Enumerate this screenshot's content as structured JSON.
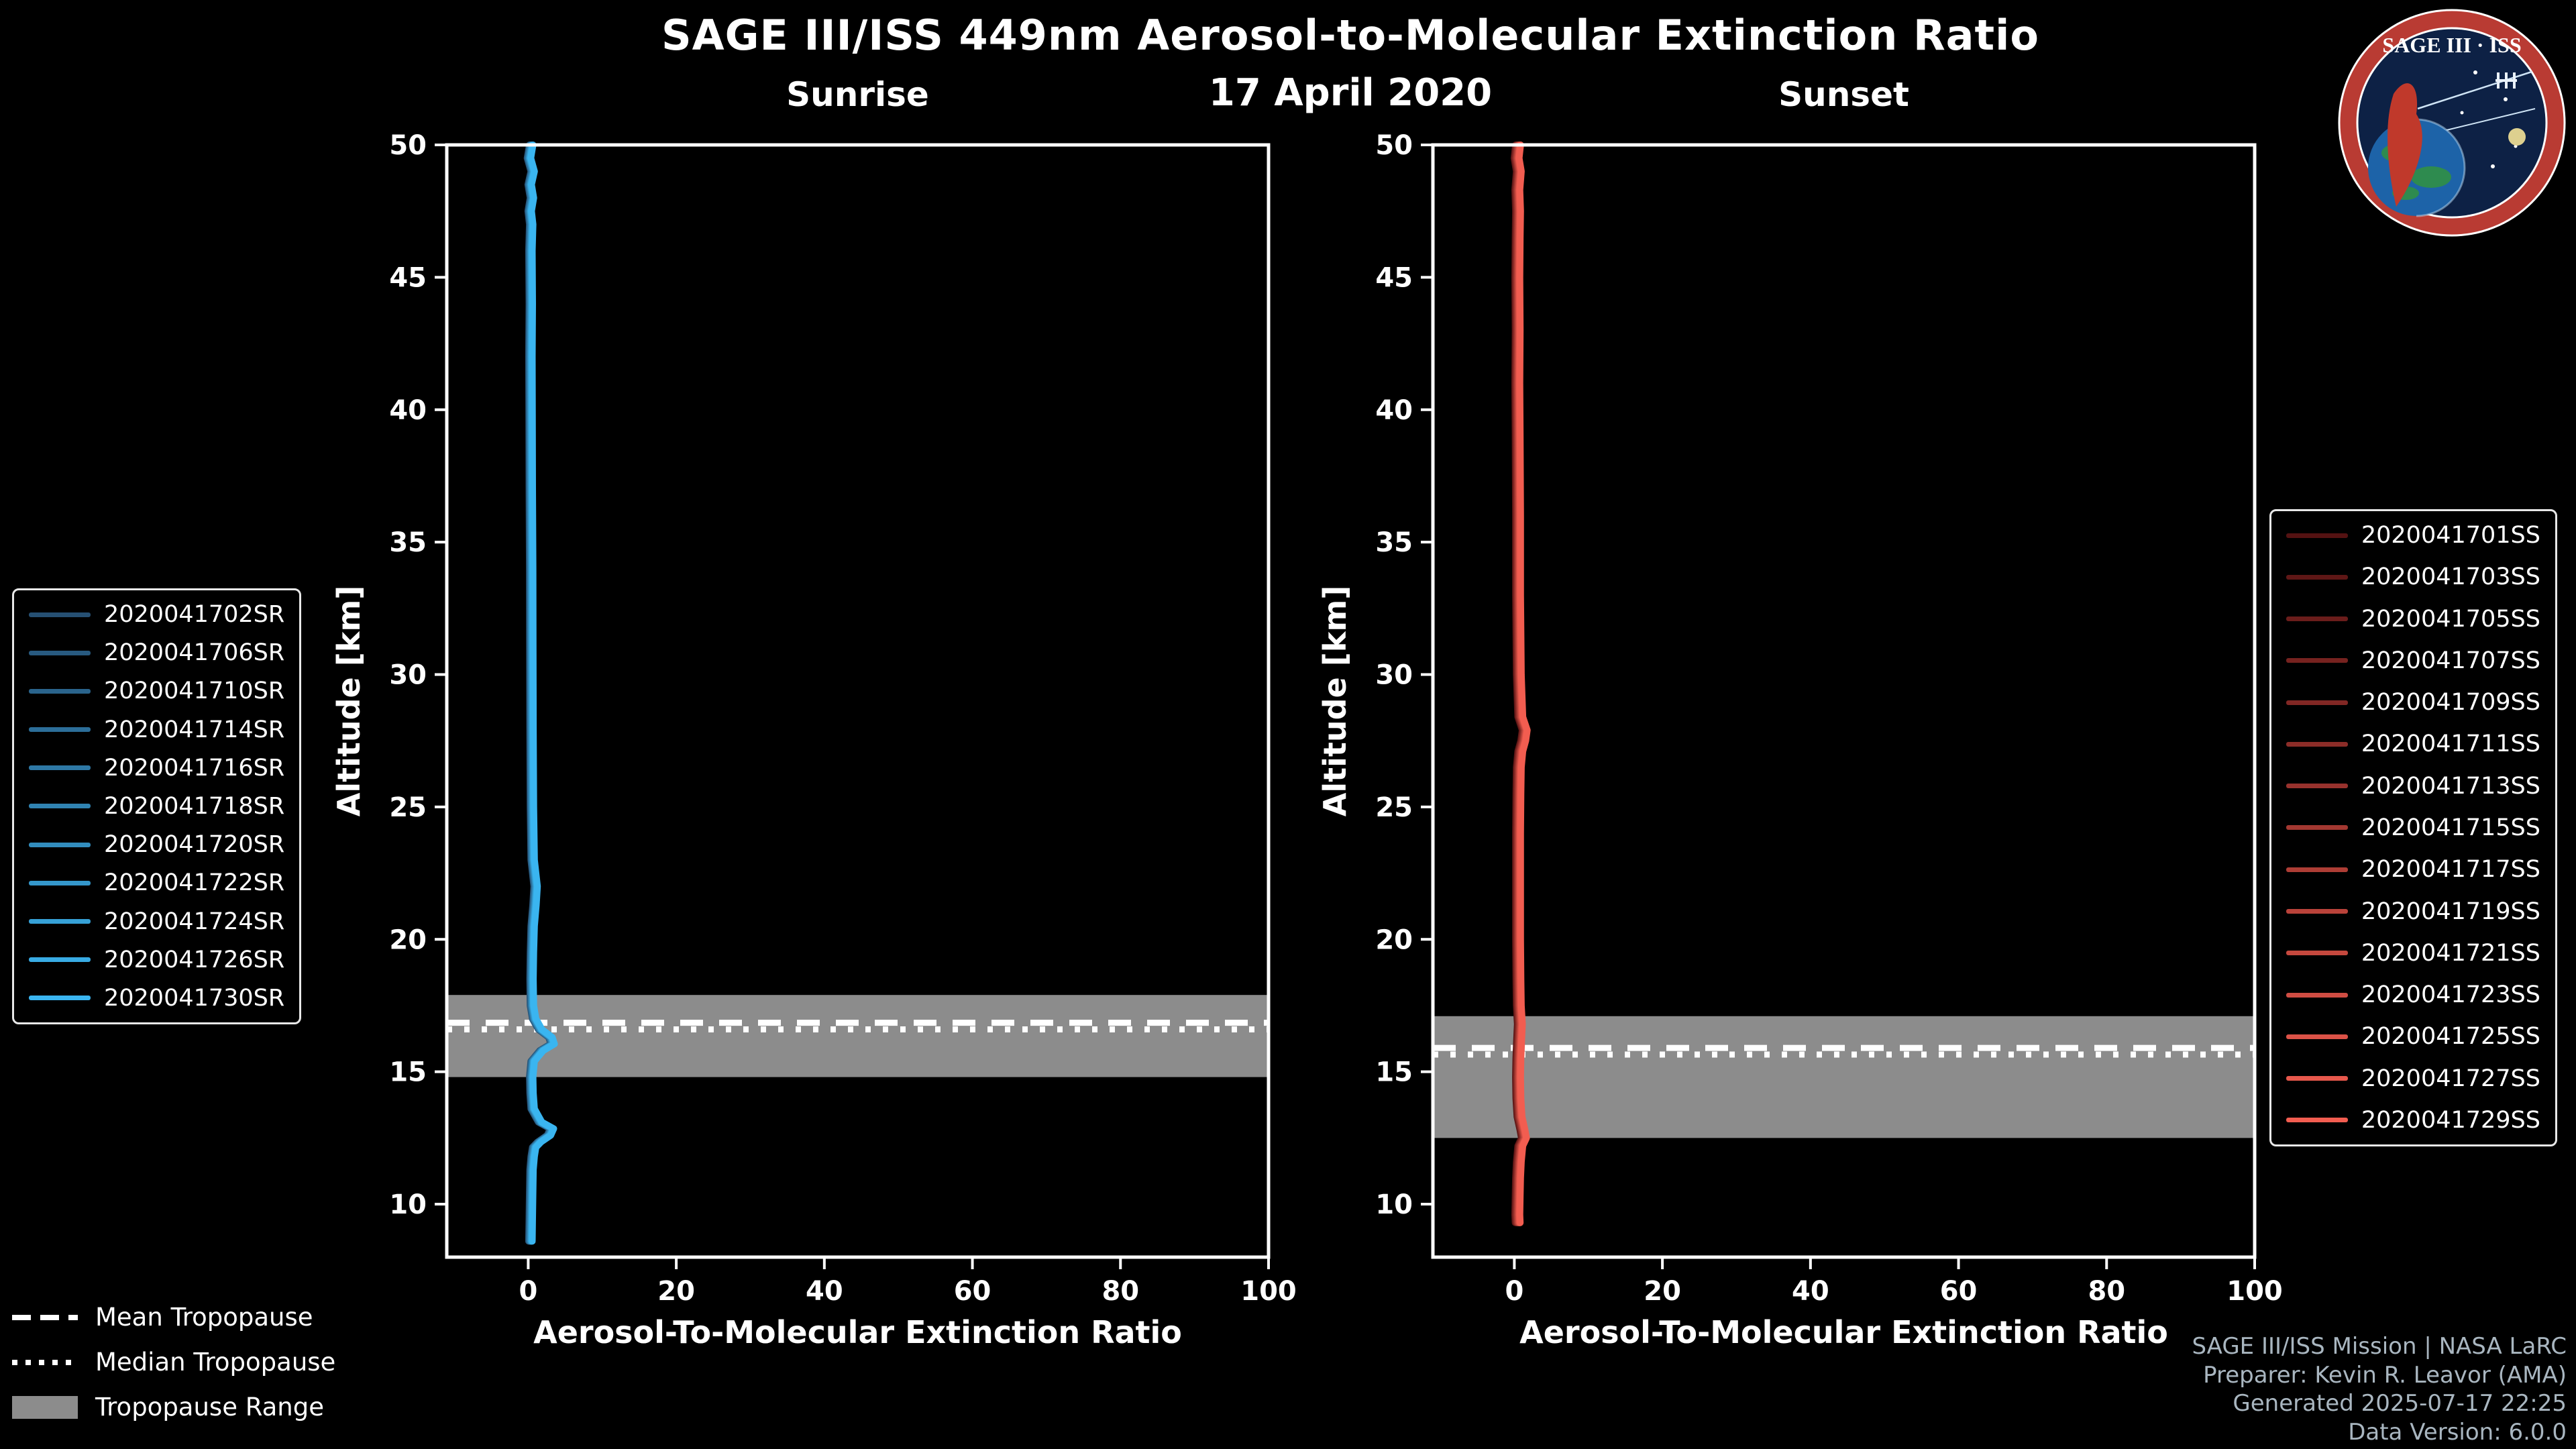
{
  "title": "SAGE III/ISS 449nm Aerosol-to-Molecular Extinction Ratio",
  "date": "17 April 2020",
  "logo": {
    "title": "SAGE III · ISS"
  },
  "legend": {
    "mean": "Mean Tropopause",
    "median": "Median Tropopause",
    "range": "Tropopause Range",
    "range_color": "#8c8c8c"
  },
  "footer": {
    "lines": [
      "SAGE III/ISS Mission | NASA LaRC",
      "Preparer: Kevin R. Leavor (AMA)",
      "Generated 2025-07-17 22:25",
      "Data Version: 6.0.0"
    ]
  },
  "chart_data": [
    {
      "type": "line",
      "panel": "sunrise",
      "title": "Sunrise",
      "xlabel": "Aerosol-To-Molecular Extinction Ratio",
      "ylabel": "Altitude [km]",
      "xlim": [
        -11,
        100
      ],
      "ylim": [
        8,
        50
      ],
      "xticks": [
        0,
        20,
        40,
        60,
        80,
        100
      ],
      "yticks": [
        10,
        15,
        20,
        25,
        30,
        35,
        40,
        45,
        50
      ],
      "grid": false,
      "legend_position": "left",
      "tropopause": {
        "mean_km": 16.85,
        "median_km": 16.6,
        "range_km": [
          14.8,
          17.9
        ]
      },
      "series": [
        {
          "name": "2020041702SR",
          "color": "#265073"
        },
        {
          "name": "2020041706SR",
          "color": "#285a80"
        },
        {
          "name": "2020041710SR",
          "color": "#2a648c"
        },
        {
          "name": "2020041714SR",
          "color": "#2c6e99"
        },
        {
          "name": "2020041716SR",
          "color": "#2e78a5"
        },
        {
          "name": "2020041718SR",
          "color": "#3083b2"
        },
        {
          "name": "2020041720SR",
          "color": "#328dbe"
        },
        {
          "name": "2020041722SR",
          "color": "#3497cb"
        },
        {
          "name": "2020041724SR",
          "color": "#36a1d7"
        },
        {
          "name": "2020041726SR",
          "color": "#38abe4"
        },
        {
          "name": "2020041730SR",
          "color": "#3ab5f0"
        }
      ],
      "profile": {
        "note": "overlapping extinction-ratio profiles, values near 0 with enhancements near 16 km and 13 km",
        "ratio": [
          0.4,
          0.1,
          0.6,
          0.2,
          0.5,
          0.2,
          0.4,
          0.3,
          0.35,
          0.3,
          0.32,
          0.35,
          0.4,
          0.42,
          0.45,
          0.5,
          0.6,
          1.0,
          0.85,
          0.6,
          0.5,
          0.45,
          0.5,
          0.8,
          1.6,
          3.0,
          3.3,
          1.8,
          0.6,
          0.4,
          0.45,
          0.6,
          1.6,
          3.2,
          2.8,
          1.5,
          0.8,
          0.6,
          0.45,
          0.4,
          0.35,
          0.3
        ],
        "altitude_km": [
          50,
          49.5,
          49,
          48.5,
          48,
          47.5,
          47,
          46,
          44,
          42,
          40,
          37,
          34,
          31,
          28,
          25,
          23,
          22,
          21.3,
          20.5,
          19.5,
          18.5,
          17.5,
          17,
          16.6,
          16.3,
          16.05,
          15.8,
          15.4,
          14.8,
          14.2,
          13.6,
          13.1,
          12.85,
          12.6,
          12.35,
          12.15,
          11.8,
          11.3,
          10.5,
          9.5,
          8.6
        ]
      }
    },
    {
      "type": "line",
      "panel": "sunset",
      "title": "Sunset",
      "xlabel": "Aerosol-To-Molecular Extinction Ratio",
      "ylabel": "Altitude [km]",
      "xlim": [
        -11,
        100
      ],
      "ylim": [
        8,
        50
      ],
      "xticks": [
        0,
        20,
        40,
        60,
        80,
        100
      ],
      "yticks": [
        10,
        15,
        20,
        25,
        30,
        35,
        40,
        45,
        50
      ],
      "grid": false,
      "legend_position": "right",
      "tropopause": {
        "mean_km": 15.9,
        "median_km": 15.65,
        "range_km": [
          12.5,
          17.1
        ]
      },
      "series": [
        {
          "name": "2020041701SS",
          "color": "#541212"
        },
        {
          "name": "2020041703SS",
          "color": "#5f1716"
        },
        {
          "name": "2020041705SS",
          "color": "#6b1d1b"
        },
        {
          "name": "2020041707SS",
          "color": "#76221f"
        },
        {
          "name": "2020041709SS",
          "color": "#812724"
        },
        {
          "name": "2020041711SS",
          "color": "#8c2d28"
        },
        {
          "name": "2020041713SS",
          "color": "#98322d"
        },
        {
          "name": "2020041715SS",
          "color": "#a33831"
        },
        {
          "name": "2020041717SS",
          "color": "#ae3d35"
        },
        {
          "name": "2020041719SS",
          "color": "#b9423a"
        },
        {
          "name": "2020041721SS",
          "color": "#c5483e"
        },
        {
          "name": "2020041723SS",
          "color": "#d04d43"
        },
        {
          "name": "2020041725SS",
          "color": "#db5247"
        },
        {
          "name": "2020041727SS",
          "color": "#e7584c"
        },
        {
          "name": "2020041729SS",
          "color": "#f25d50"
        }
      ],
      "profile": {
        "note": "overlapping extinction-ratio profiles, values near 0 with small enhancement near 27.5 km",
        "ratio": [
          0.5,
          0.3,
          0.6,
          0.4,
          0.5,
          0.45,
          0.4,
          0.45,
          0.4,
          0.45,
          0.5,
          0.5,
          0.6,
          0.8,
          1.4,
          1.2,
          0.8,
          0.6,
          0.55,
          0.5,
          0.5,
          0.5,
          0.55,
          0.6,
          0.75,
          0.65,
          0.55,
          0.5,
          0.55,
          0.7,
          1.1,
          1.3,
          0.8,
          0.6,
          0.5,
          0.45,
          0.4,
          0.45
        ],
        "altitude_km": [
          50,
          49.5,
          49,
          48.3,
          47.5,
          46.5,
          45,
          43,
          41,
          39,
          36,
          33,
          30,
          28.4,
          27.9,
          27.5,
          27.1,
          26.5,
          25.5,
          24,
          22,
          20,
          18.5,
          17.5,
          16.8,
          16.2,
          15.5,
          14.8,
          14,
          13.3,
          12.8,
          12.5,
          12.2,
          11.6,
          11,
          10.3,
          9.6,
          9.3
        ]
      }
    }
  ]
}
